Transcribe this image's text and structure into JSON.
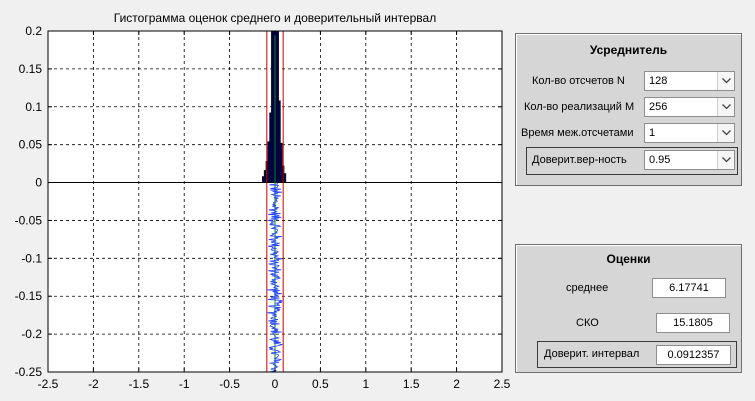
{
  "chart_data": {
    "type": "bar",
    "title": "Гистограмма оценок среднего и доверительный интервал",
    "xlim": [
      -2.5,
      2.5
    ],
    "ylim": [
      -0.25,
      0.2
    ],
    "xticks": [
      "-2.5",
      "-2",
      "-1.5",
      "-1",
      "-0.5",
      "0",
      "0.5",
      "1",
      "1.5",
      "2",
      "2.5"
    ],
    "yticks": [
      "0.2",
      "0.15",
      "0.1",
      "0.05",
      "0",
      "-0.05",
      "-0.1",
      "-0.15",
      "-0.2",
      "-0.25"
    ],
    "grid": true,
    "histogram": {
      "bin_width": 0.02,
      "bins": [
        {
          "x": -0.13,
          "y": 0.008
        },
        {
          "x": -0.11,
          "y": 0.016
        },
        {
          "x": -0.09,
          "y": 0.028
        },
        {
          "x": -0.07,
          "y": 0.054
        },
        {
          "x": -0.05,
          "y": 0.092
        },
        {
          "x": -0.03,
          "y": 0.2
        },
        {
          "x": -0.01,
          "y": 0.2
        },
        {
          "x": 0.01,
          "y": 0.2
        },
        {
          "x": 0.03,
          "y": 0.2
        },
        {
          "x": 0.05,
          "y": 0.108
        },
        {
          "x": 0.07,
          "y": 0.052
        },
        {
          "x": 0.09,
          "y": 0.022
        },
        {
          "x": 0.11,
          "y": 0.012
        }
      ],
      "color": "#00005a"
    },
    "confidence_lines": {
      "lower": -0.09,
      "upper": 0.09,
      "color": "#cc0000"
    },
    "center_line": {
      "x": 0.0,
      "color": "#008800"
    },
    "trace": {
      "color": "#1f3fff",
      "y_from": 0.0,
      "y_to": -0.25,
      "amplitude": 0.1,
      "samples": 256
    }
  },
  "panel1": {
    "title": "Усреднитель",
    "rows": [
      {
        "label": "Кол-во отсчетов N",
        "value": "128"
      },
      {
        "label": "Кол-во реализаций M",
        "value": "256"
      },
      {
        "label": "Время меж.отсчетами",
        "value": "1"
      },
      {
        "label": "Доверит.вер-ность",
        "value": "0.95"
      }
    ]
  },
  "panel2": {
    "title": "Оценки",
    "mean_label": "среднее",
    "mean_value": "6.17741",
    "std_label": "СКО",
    "std_value": "15.1805",
    "ci_label": "Доверит. интервал",
    "ci_value": "0.0912357"
  },
  "icons": {
    "dropdown": "chevron-down-icon"
  }
}
